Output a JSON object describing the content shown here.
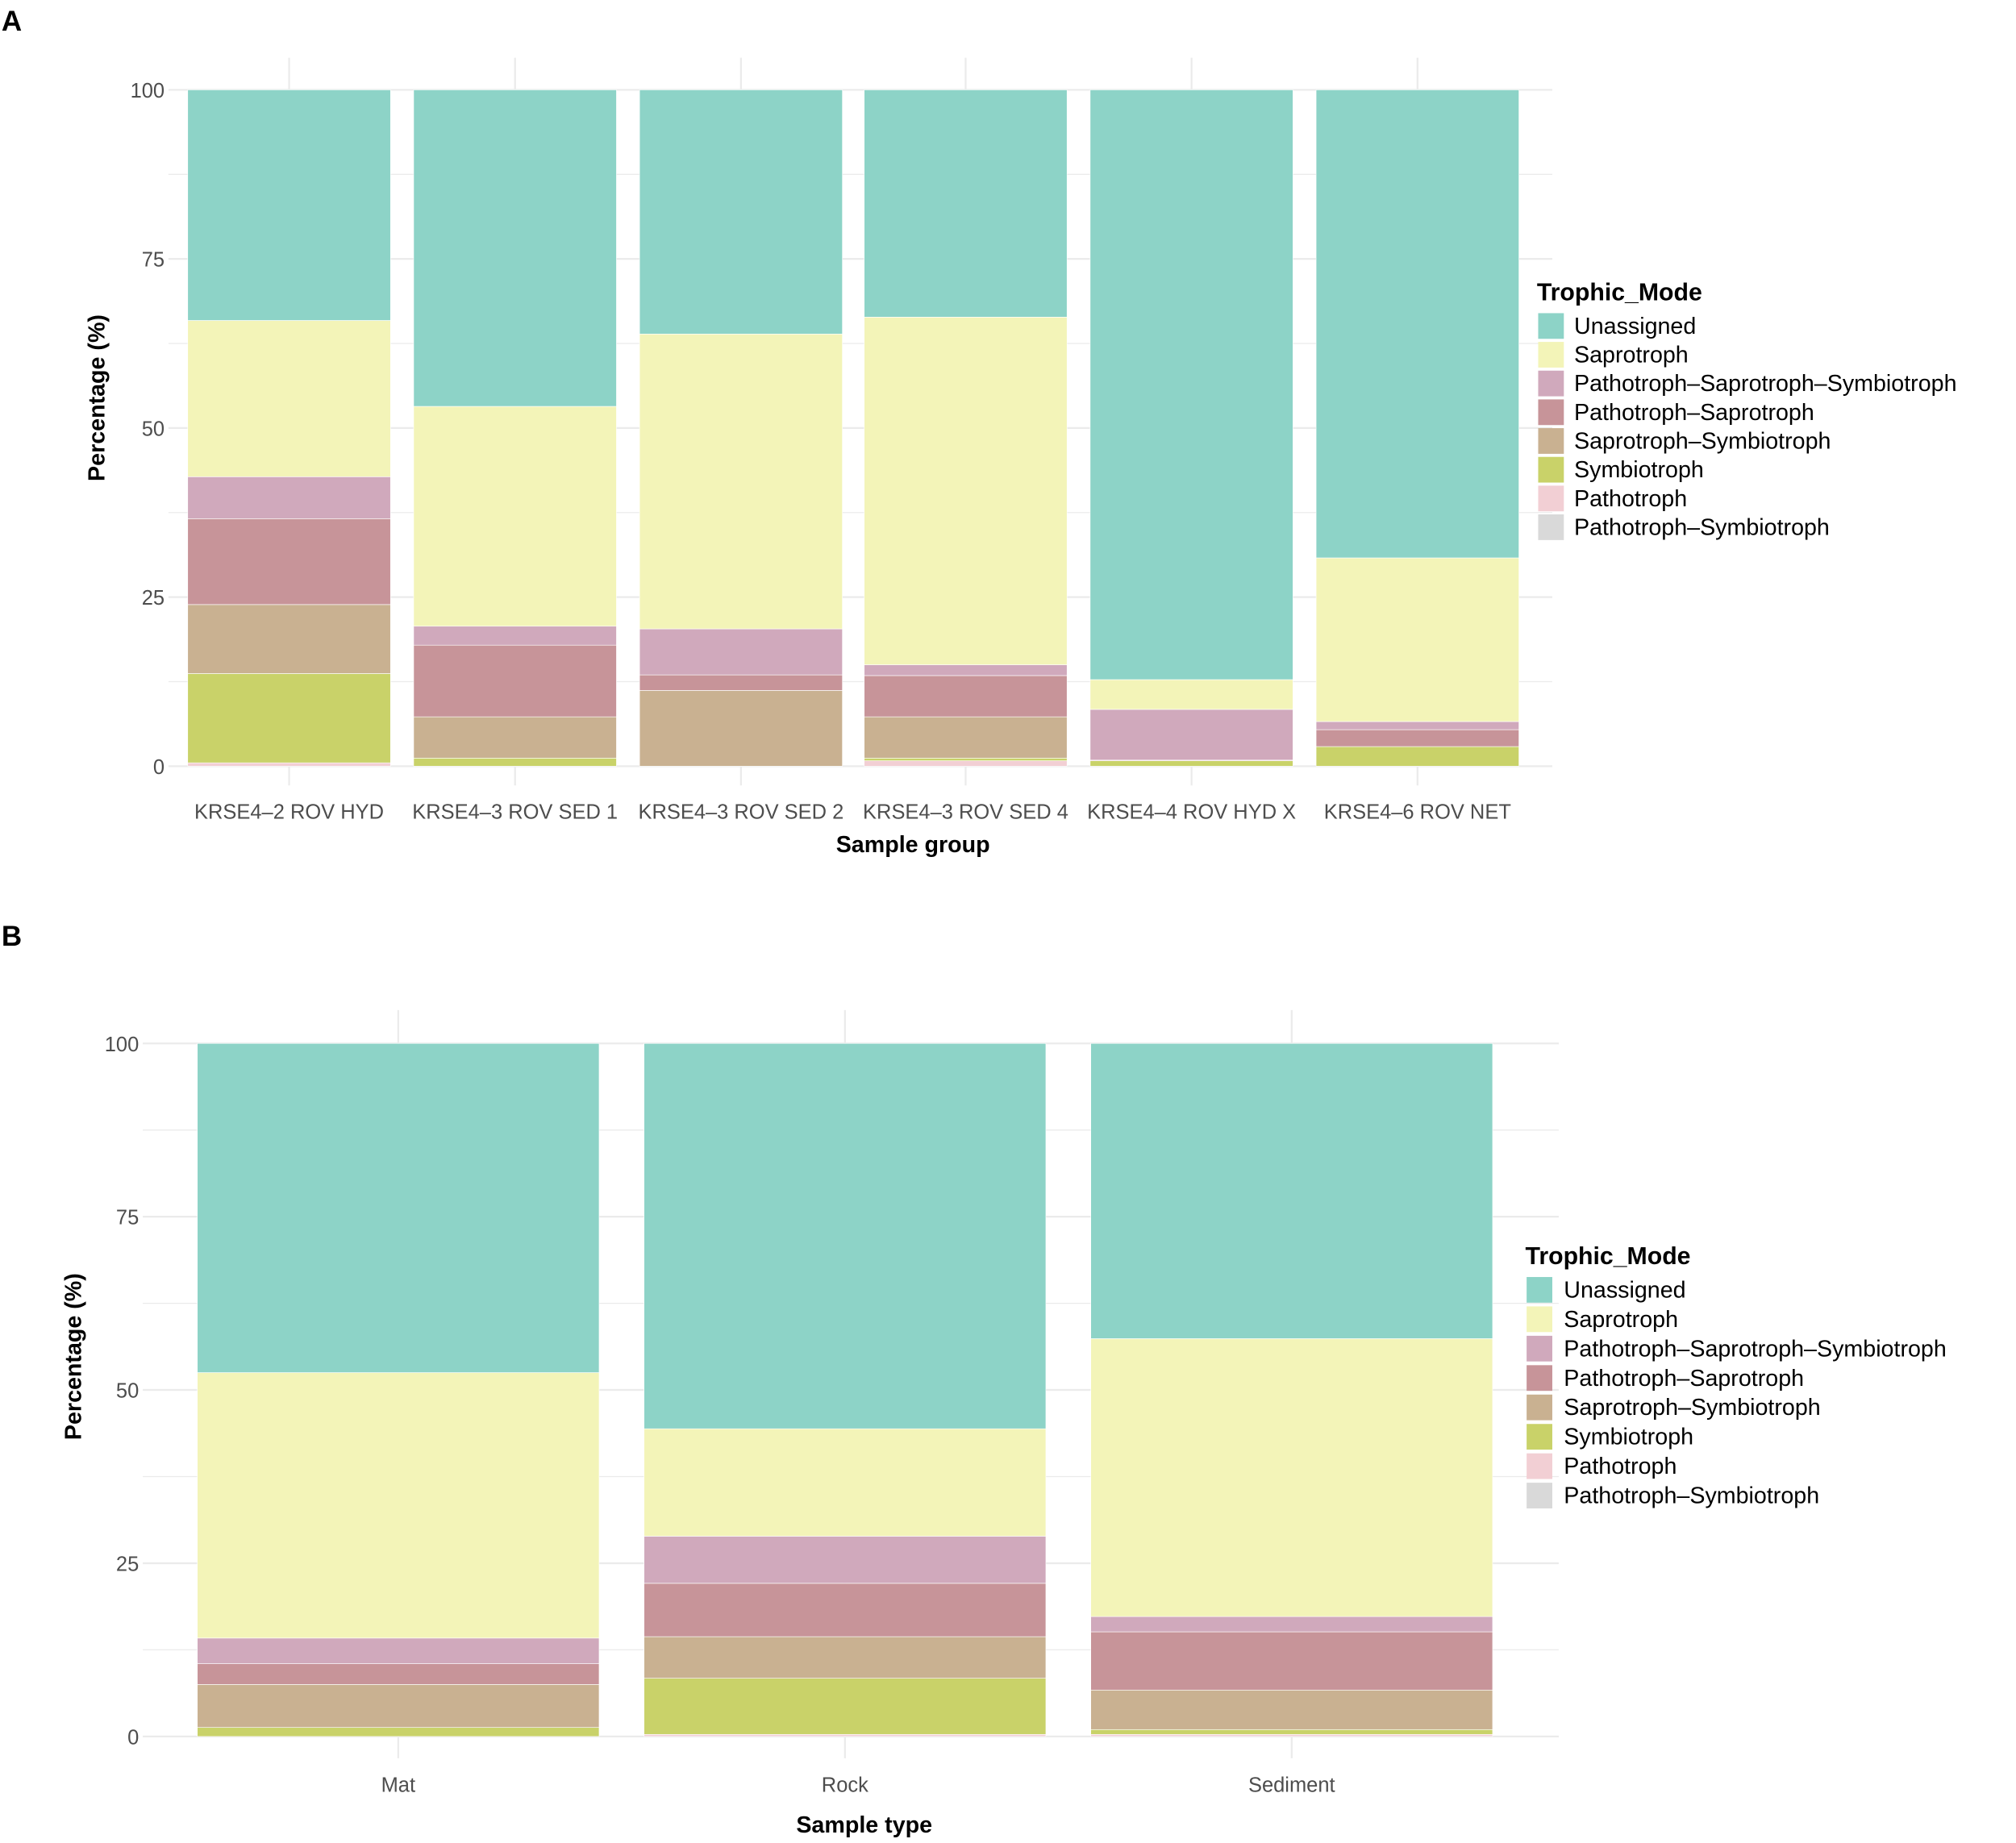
{
  "chart_data": [
    {
      "type": "bar",
      "stacked": true,
      "panel_label": "A",
      "xlabel": "Sample group",
      "ylabel": "Percentage (%)",
      "ylim": [
        0,
        100
      ],
      "yticks": [
        "0",
        "25",
        "50",
        "75",
        "100"
      ],
      "grid": true,
      "legend_title": "Trophic_Mode",
      "legend_position": "right",
      "categories": [
        "KRSE4–2 ROV HYD",
        "KRSE4–3 ROV SED 1",
        "KRSE4–3 ROV SED 2",
        "KRSE4–3 ROV SED 4",
        "KRSE4–4 ROV HYD X",
        "KRSE4–6 ROV NET"
      ],
      "series": [
        {
          "name": "Unassigned",
          "color": "#8DD3C7",
          "values": [
            34.1,
            46.8,
            36.1,
            33.6,
            87.2,
            69.2
          ]
        },
        {
          "name": "Saprotroph",
          "color": "#F3F4B8",
          "values": [
            23.1,
            32.5,
            43.6,
            51.4,
            4.4,
            24.2
          ]
        },
        {
          "name": "Pathotroph–Saprotroph–Symbiotroph",
          "color": "#D0A9BC",
          "values": [
            6.2,
            2.8,
            6.8,
            1.6,
            7.5,
            1.2
          ]
        },
        {
          "name": "Pathotroph–Saprotroph",
          "color": "#C79499",
          "values": [
            12.7,
            10.6,
            2.3,
            6.1,
            0.1,
            2.5
          ]
        },
        {
          "name": "Saprotroph–Symbiotroph",
          "color": "#C9B191",
          "values": [
            10.2,
            6.1,
            11.2,
            6.1,
            0,
            0
          ]
        },
        {
          "name": "Symbiotroph",
          "color": "#C9D269",
          "values": [
            13.2,
            1.2,
            0,
            0.4,
            0.8,
            2.9
          ]
        },
        {
          "name": "Pathotroph",
          "color": "#F2CFD4",
          "values": [
            0.5,
            0,
            0,
            0.8,
            0,
            0
          ]
        },
        {
          "name": "Pathotroph–Symbiotroph",
          "color": "#D9D9D9",
          "values": [
            0,
            0,
            0,
            0,
            0,
            0
          ]
        }
      ]
    },
    {
      "type": "bar",
      "stacked": true,
      "panel_label": "B",
      "xlabel": "Sample type",
      "ylabel": "Percentage (%)",
      "ylim": [
        0,
        100
      ],
      "yticks": [
        "0",
        "25",
        "50",
        "75",
        "100"
      ],
      "grid": true,
      "legend_title": "Trophic_Mode",
      "legend_position": "right",
      "categories": [
        "Mat",
        "Rock",
        "Sediment"
      ],
      "series": [
        {
          "name": "Unassigned",
          "color": "#8DD3C7",
          "values": [
            47.5,
            55.6,
            42.6
          ]
        },
        {
          "name": "Saprotroph",
          "color": "#F3F4B8",
          "values": [
            38.3,
            15.5,
            40.1
          ]
        },
        {
          "name": "Pathotroph–Saprotroph–Symbiotroph",
          "color": "#D0A9BC",
          "values": [
            3.7,
            6.8,
            2.2
          ]
        },
        {
          "name": "Pathotroph–Saprotroph",
          "color": "#C79499",
          "values": [
            3.0,
            7.7,
            8.4
          ]
        },
        {
          "name": "Saprotroph–Symbiotroph",
          "color": "#C9B191",
          "values": [
            6.2,
            6.0,
            5.7
          ]
        },
        {
          "name": "Symbiotroph",
          "color": "#C9D269",
          "values": [
            1.3,
            8.1,
            0.7
          ]
        },
        {
          "name": "Pathotroph",
          "color": "#F2CFD4",
          "values": [
            0,
            0.3,
            0.3
          ]
        },
        {
          "name": "Pathotroph–Symbiotroph",
          "color": "#D9D9D9",
          "values": [
            0,
            0,
            0
          ]
        }
      ]
    }
  ]
}
